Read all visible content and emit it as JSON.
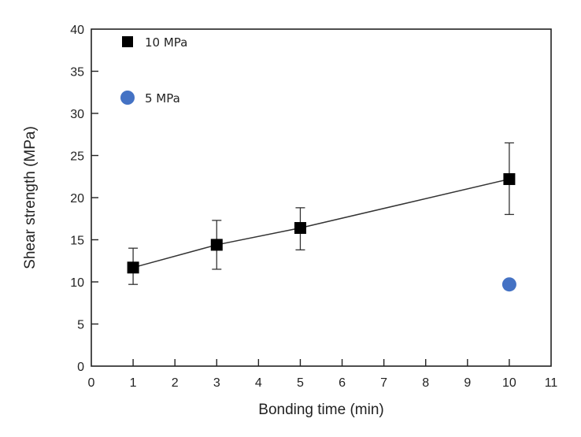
{
  "chart_data": {
    "type": "scatter",
    "title": "",
    "xlabel": "Bonding time (min)",
    "ylabel": "Shear strength (MPa)",
    "xlim": [
      0,
      11
    ],
    "ylim": [
      0,
      40
    ],
    "xticks": [
      0,
      1,
      2,
      3,
      4,
      5,
      6,
      7,
      8,
      9,
      10,
      11
    ],
    "yticks": [
      0,
      5,
      10,
      15,
      20,
      25,
      30,
      35,
      40
    ],
    "grid": false,
    "legend_position": "top-left",
    "series": [
      {
        "name": "10 MPa",
        "marker": "square",
        "color": "#000000",
        "line": true,
        "points": [
          {
            "x": 1,
            "y": 11.7,
            "err_low": 9.7,
            "err_high": 14.0
          },
          {
            "x": 3,
            "y": 14.4,
            "err_low": 11.5,
            "err_high": 17.3
          },
          {
            "x": 5,
            "y": 16.4,
            "err_low": 13.8,
            "err_high": 18.8
          },
          {
            "x": 10,
            "y": 22.2,
            "err_low": 18.0,
            "err_high": 26.5
          }
        ]
      },
      {
        "name": "5 MPa",
        "marker": "circle",
        "color": "#4472C4",
        "line": false,
        "points": [
          {
            "x": 10,
            "y": 9.7
          }
        ]
      }
    ]
  }
}
